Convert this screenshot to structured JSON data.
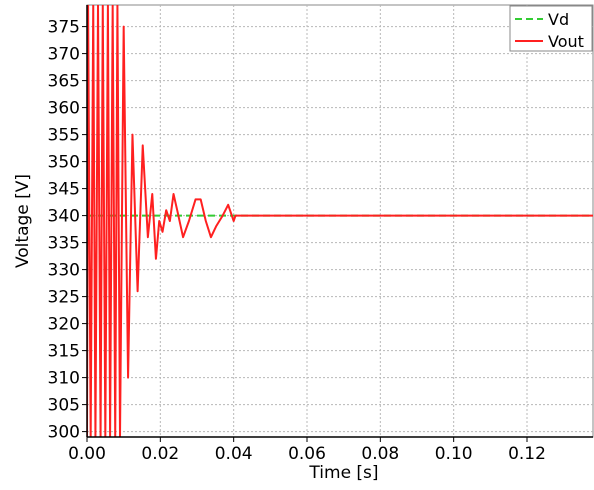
{
  "chart_data": {
    "type": "line",
    "xlabel": "Time [s]",
    "ylabel": "Voltage [V]",
    "xlim": [
      0,
      0.138
    ],
    "ylim": [
      299,
      379
    ],
    "x_ticks": [
      0.0,
      0.02,
      0.04,
      0.06,
      0.08,
      0.1,
      0.12
    ],
    "x_tick_labels": [
      "0.00",
      "0.02",
      "0.04",
      "0.06",
      "0.08",
      "0.10",
      "0.12"
    ],
    "y_ticks": [
      300,
      305,
      310,
      315,
      320,
      325,
      330,
      335,
      340,
      345,
      350,
      355,
      360,
      365,
      370,
      375
    ],
    "y_tick_labels": [
      "300",
      "305",
      "310",
      "315",
      "320",
      "325",
      "330",
      "335",
      "340",
      "345",
      "350",
      "355",
      "360",
      "365",
      "370",
      "375"
    ],
    "grid": true,
    "legend": "top-right",
    "series": [
      {
        "name": "Vd",
        "style": "dashed",
        "color": "#33cc33",
        "x": [
          0.0,
          0.138
        ],
        "y": [
          340,
          340
        ]
      },
      {
        "name": "Vout",
        "style": "solid",
        "color": "#ff2020",
        "x": [
          0.0,
          0.0003,
          0.001,
          0.0017,
          0.0023,
          0.003,
          0.0037,
          0.0043,
          0.005,
          0.0057,
          0.0063,
          0.007,
          0.0077,
          0.0083,
          0.009,
          0.01,
          0.0112,
          0.0124,
          0.0138,
          0.0152,
          0.0166,
          0.0178,
          0.0188,
          0.0197,
          0.0206,
          0.0216,
          0.0226,
          0.0236,
          0.0246,
          0.0262,
          0.0278,
          0.0296,
          0.031,
          0.0324,
          0.0338,
          0.0352,
          0.037,
          0.0385,
          0.0395,
          0.04,
          0.0405,
          0.042,
          0.06,
          0.1,
          0.138
        ],
        "y": [
          299,
          379,
          299,
          379,
          299,
          379,
          299,
          379,
          299,
          379,
          299,
          379,
          299,
          379,
          299,
          375,
          310,
          355,
          326,
          353,
          336,
          344,
          332,
          339,
          337,
          341,
          339,
          344,
          341,
          336,
          339,
          343,
          343,
          339,
          336,
          338,
          340,
          342,
          340,
          339,
          340,
          340,
          340,
          340,
          340
        ]
      }
    ]
  }
}
